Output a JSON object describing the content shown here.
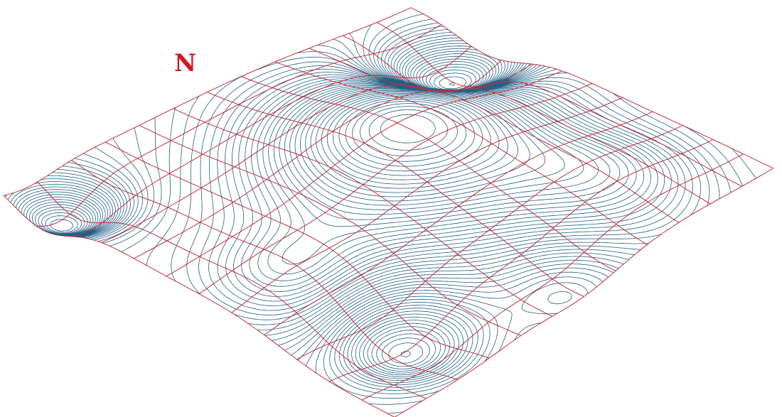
{
  "map": {
    "north_label": "N",
    "colors": {
      "background": "#ffffff",
      "grid": "#c0323c",
      "contour": "#1f5f86",
      "contour_dense": "#1a4fa0",
      "north_label": "#d0181e"
    },
    "surface": {
      "kind": "3D wireframe terrain with contour lines",
      "grid_rows": 12,
      "grid_cols": 12,
      "contour_levels": 60
    }
  }
}
